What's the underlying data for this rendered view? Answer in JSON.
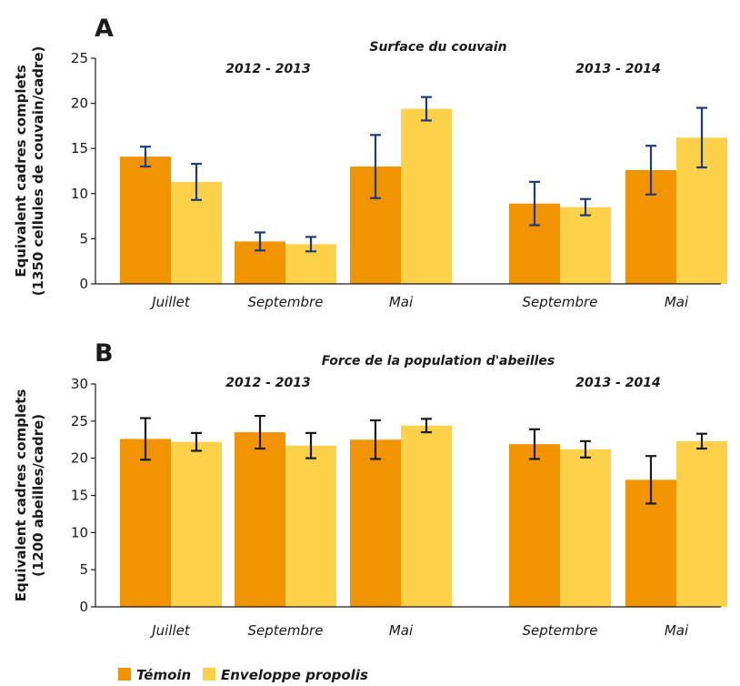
{
  "colors": {
    "temoin": "#f29400",
    "propolis": "#fdd14a",
    "errorbar_A": "#1f3a7a",
    "errorbar_B": "#1a1a1a"
  },
  "legend": {
    "temoin": "Témoin",
    "propolis": "Enveloppe propolis"
  },
  "chart_data": [
    {
      "panel": "A",
      "type": "bar",
      "title": "Surface du couvain",
      "ylabel_line1": "Equivalent cadres complets",
      "ylabel_line2": "(1350 cellules de couvain/cadre)",
      "ylim": [
        0,
        25
      ],
      "yticks": [
        0,
        5,
        10,
        15,
        20,
        25
      ],
      "periods": [
        "2012 - 2013",
        "2013 - 2014"
      ],
      "categories": [
        "Juillet",
        "Septembre",
        "Mai",
        "Septembre",
        "Mai"
      ],
      "series": [
        {
          "name": "Témoin",
          "values": [
            14.1,
            4.7,
            13.0,
            8.9,
            12.6
          ],
          "errors": [
            1.1,
            1.0,
            3.5,
            2.4,
            2.7
          ]
        },
        {
          "name": "Enveloppe propolis",
          "values": [
            11.3,
            4.4,
            19.4,
            8.5,
            16.2
          ],
          "errors": [
            2.0,
            0.8,
            1.3,
            0.9,
            3.3
          ]
        }
      ]
    },
    {
      "panel": "B",
      "type": "bar",
      "title": "Force de la population d'abeilles",
      "ylabel_line1": "Equivalent cadres complets",
      "ylabel_line2": "(1200 abeilles/cadre)",
      "ylim": [
        0,
        30
      ],
      "yticks": [
        0,
        5,
        10,
        15,
        20,
        25,
        30
      ],
      "periods": [
        "2012 - 2013",
        "2013 - 2014"
      ],
      "categories": [
        "Juillet",
        "Septembre",
        "Mai",
        "Septembre",
        "Mai"
      ],
      "series": [
        {
          "name": "Témoin",
          "values": [
            22.6,
            23.5,
            22.5,
            21.9,
            17.1
          ],
          "errors": [
            2.8,
            2.2,
            2.6,
            2.0,
            3.2
          ]
        },
        {
          "name": "Enveloppe propolis",
          "values": [
            22.2,
            21.7,
            24.4,
            21.2,
            22.3
          ],
          "errors": [
            1.2,
            1.7,
            0.9,
            1.1,
            1.0
          ]
        }
      ]
    }
  ]
}
